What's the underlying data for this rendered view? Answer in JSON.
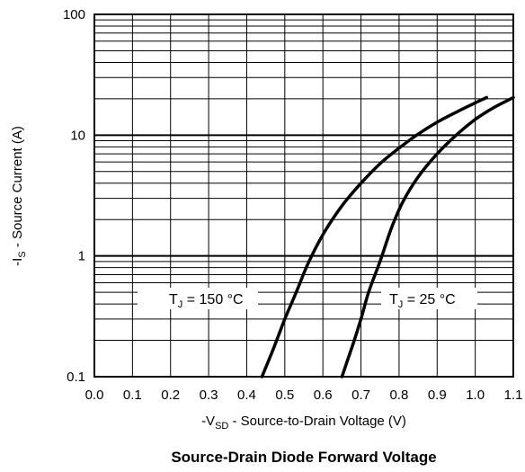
{
  "chart_data": {
    "type": "line",
    "title": "Source-Drain Diode Forward Voltage",
    "xlabel": {
      "prefix": "-V",
      "sub": "SD",
      "rest": " - Source-to-Drain Voltage (V)"
    },
    "ylabel": {
      "prefix": "-I",
      "sub": "S",
      "rest": " - Source Current (A)"
    },
    "xlim": [
      0.0,
      1.1
    ],
    "ylim": [
      0.1,
      100
    ],
    "yscale": "log",
    "grid": true,
    "x_ticks": [
      "0.0",
      "0.1",
      "0.2",
      "0.3",
      "0.4",
      "0.5",
      "0.6",
      "0.7",
      "0.8",
      "0.9",
      "1.0",
      "1.1"
    ],
    "y_ticks": [
      "0.1",
      "1",
      "10",
      "100"
    ],
    "series": [
      {
        "name": "T_J = 150 °C",
        "label": {
          "prefix": "T",
          "sub": "J",
          "rest": " = 150 °C"
        },
        "x": [
          0.44,
          0.47,
          0.5,
          0.53,
          0.56,
          0.6,
          0.65,
          0.7,
          0.75,
          0.8,
          0.85,
          0.9,
          0.95,
          1.0,
          1.03
        ],
        "y": [
          0.1,
          0.17,
          0.3,
          0.5,
          0.85,
          1.5,
          2.6,
          4.0,
          5.8,
          7.8,
          10.2,
          12.8,
          15.5,
          18.5,
          20.5
        ]
      },
      {
        "name": "T_J = 25 °C",
        "label": {
          "prefix": "T",
          "sub": "J",
          "rest": " = 25 °C"
        },
        "x": [
          0.65,
          0.68,
          0.7,
          0.72,
          0.75,
          0.78,
          0.81,
          0.85,
          0.9,
          0.95,
          1.0,
          1.05,
          1.1
        ],
        "y": [
          0.1,
          0.19,
          0.3,
          0.5,
          0.9,
          1.7,
          2.8,
          4.5,
          7.0,
          10.0,
          13.5,
          17.0,
          20.5
        ]
      }
    ]
  }
}
